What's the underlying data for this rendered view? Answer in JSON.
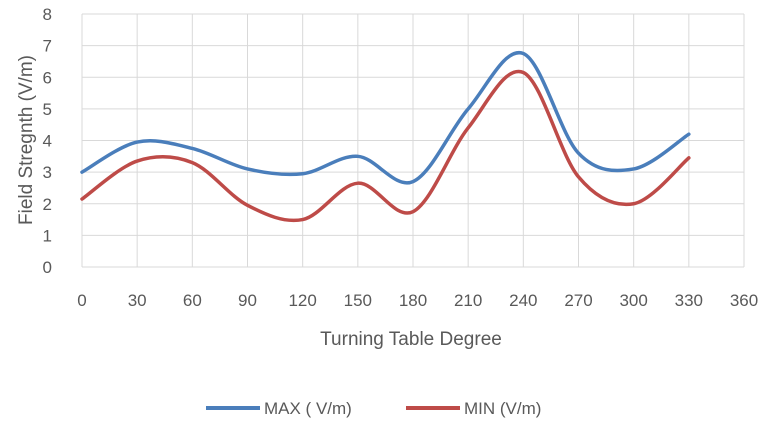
{
  "chart_data": {
    "type": "line",
    "title": "",
    "xlabel": "Turning Table Degree",
    "ylabel": "Field Stregnth (V/m)",
    "xlim": [
      0,
      360
    ],
    "ylim": [
      0,
      8
    ],
    "xticks": [
      0,
      30,
      60,
      90,
      120,
      150,
      180,
      210,
      240,
      270,
      300,
      330,
      360
    ],
    "yticks": [
      0,
      1,
      2,
      3,
      4,
      5,
      6,
      7,
      8
    ],
    "grid": true,
    "smooth": true,
    "legend_position": "bottom",
    "x": [
      0,
      30,
      60,
      90,
      120,
      150,
      180,
      210,
      240,
      270,
      300,
      330
    ],
    "series": [
      {
        "name": "MAX ( V/m)",
        "color": "#4a7ebb",
        "values": [
          3.0,
          3.95,
          3.75,
          3.1,
          2.95,
          3.5,
          2.7,
          5.0,
          6.75,
          3.6,
          3.1,
          4.2
        ]
      },
      {
        "name": "MIN (V/m)",
        "color": "#be4b48",
        "values": [
          2.15,
          3.35,
          3.3,
          1.95,
          1.5,
          2.65,
          1.75,
          4.4,
          6.15,
          2.85,
          2.0,
          3.45
        ]
      }
    ]
  }
}
